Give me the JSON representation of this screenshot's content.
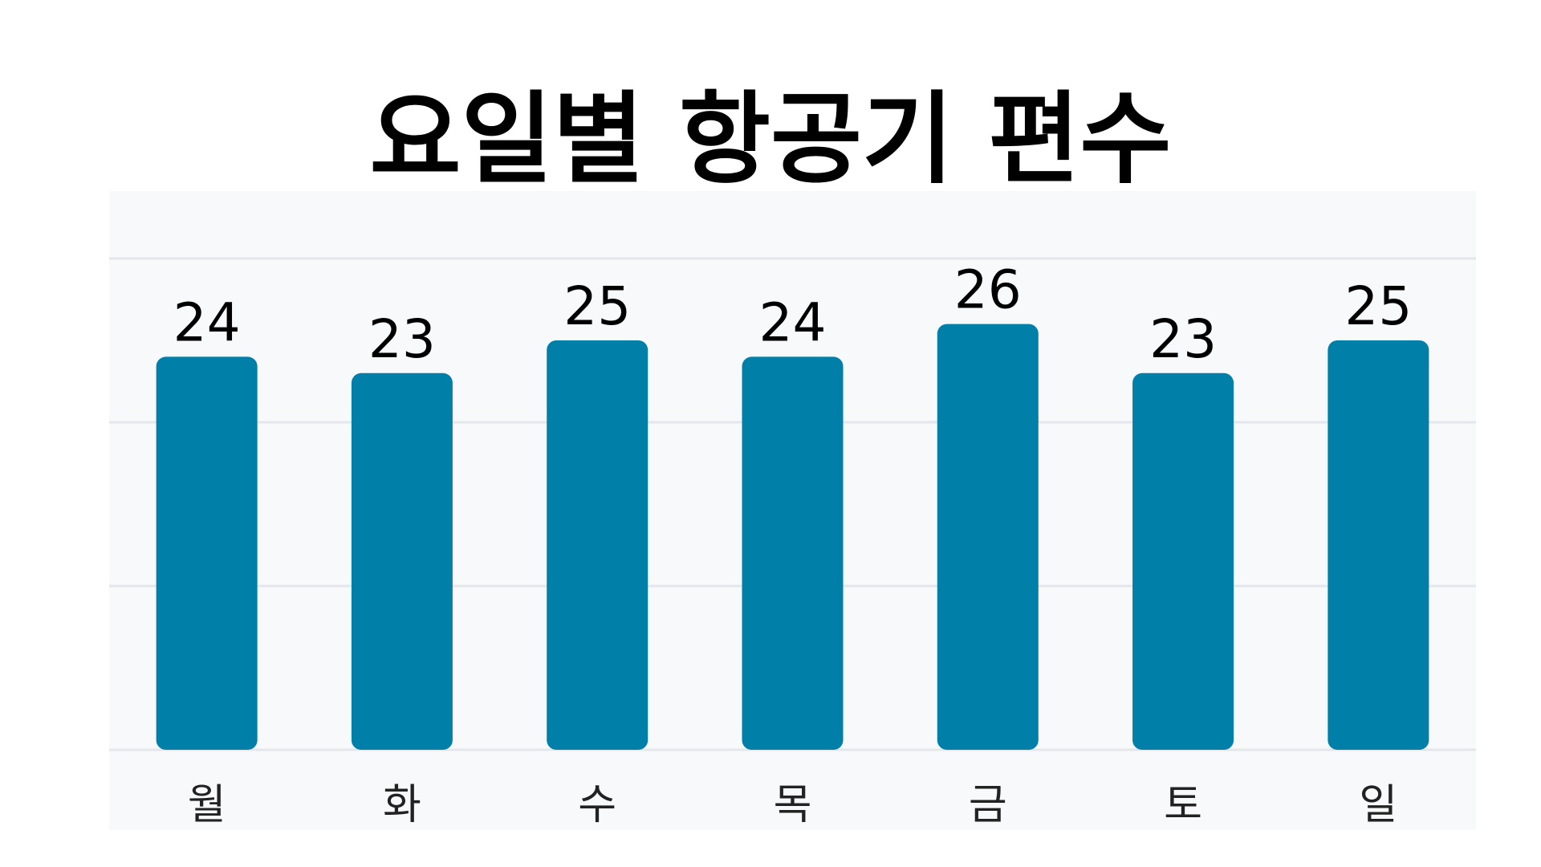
{
  "chart_data": {
    "type": "bar",
    "title": "요일별 항공기 편수",
    "xlabel": "",
    "ylabel": "",
    "categories": [
      "월",
      "화",
      "수",
      "목",
      "금",
      "토",
      "일"
    ],
    "values": [
      24,
      23,
      25,
      24,
      26,
      23,
      25
    ],
    "ylim": [
      0,
      30
    ],
    "grid": true,
    "legend": "none",
    "data_labels": true,
    "bar_color": "#0080a8",
    "panel_background": "#f8f9fb",
    "gridline_color": "#e3e6ea"
  }
}
